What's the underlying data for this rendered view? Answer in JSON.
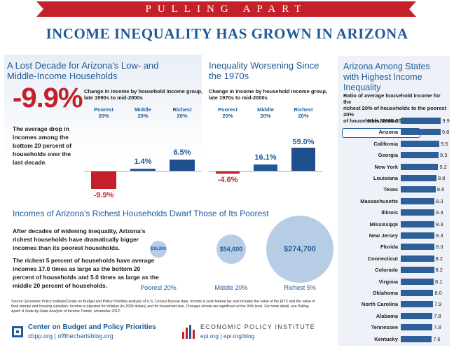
{
  "banner": "PULLING APART",
  "title": "INCOME INEQUALITY HAS GROWN IN ARIZONA",
  "decade": {
    "title_line1": "A Lost Decade for Arizona's Low- and",
    "title_line2": "Middle-Income Households",
    "subtitle_line1": "Change in income by household income group,",
    "subtitle_line2": "late 1990s to mid-2000s",
    "big_number": "-9.9%",
    "para_lines": [
      "The average drop in",
      "incomes among the",
      "bottom 20 percent of",
      "households over the",
      "last decade."
    ]
  },
  "worsening": {
    "title_line1": "Inequality Worsening Since",
    "title_line2": "the 1970s",
    "subtitle_line1": "Change in income by household income group,",
    "subtitle_line2": "late 1970s to mid-2000s"
  },
  "richest": {
    "title": "Incomes of Arizona's Richest Households Dwarf Those of Its Poorest",
    "para1_lines": [
      "After decades of widening inequality, Arizona's",
      "richest households have dramatically bigger",
      "incomes than its poorest households."
    ],
    "para2_lines": [
      "The richest 5 percent of households have average",
      "incomes 17.0 times as large as the bottom 20",
      "percent of households and 5.0 times as large as the",
      "middle 20 percent of households."
    ]
  },
  "states_panel": {
    "title_line1": "Arizona Among States",
    "title_line2": "with Highest Income",
    "title_line3": "Inequality",
    "subtitle_lines": [
      "Ratio of average household income for the",
      "richest 20% of households to the poorest 20%",
      "of households, 2008-2010"
    ]
  },
  "source_lines": [
    "Source: Economic Policy Institute/Center on Budget and Policy Priorities analysis of U.S. Census Bureau data.  Income is post-federal tax and includes the value of the EITC and the value of",
    "food stamps and housing subsidies. Income is adjusted for inflation (to 2009 dollars) and for household size. Changes shown are significant at the 90% level.  For more detail, see Pulling",
    "Apart: A State-by-State Analysis of Income Trends, November 2012."
  ],
  "footer": {
    "cbpp_name": "Center on Budget and Policy Priorities",
    "cbpp_url": "cbpp.org | offthechartsblog.org",
    "epi_name": "ECONOMIC POLICY INSTITUTE",
    "epi_url": "epi.org | epi.org/blog"
  },
  "colors": {
    "red": "#c4202a",
    "blue": "#1f5a96",
    "bar_blue": "#2f5f98",
    "bubble": "#b7cde6"
  },
  "chart_data": [
    {
      "type": "bar",
      "id": "decade",
      "title": "Change in income by household income group, late 1990s to mid-2000s",
      "categories": [
        "Poorest 20%",
        "Middle 20%",
        "Richest 20%"
      ],
      "category_lines": [
        [
          "Poorest",
          "20%"
        ],
        [
          "Middle",
          "20%"
        ],
        [
          "Richest",
          "20%"
        ]
      ],
      "values": [
        -9.9,
        1.4,
        6.5
      ],
      "labels": [
        "-9.9%",
        "1.4%",
        "6.5%"
      ],
      "ylim": [
        -10,
        60
      ]
    },
    {
      "type": "bar",
      "id": "worsening",
      "title": "Change in income by household income group, late 1970s to mid-2000s",
      "categories": [
        "Poorest 20%",
        "Middle 20%",
        "Richest 20%"
      ],
      "category_lines": [
        [
          "Poorest",
          "20%"
        ],
        [
          "Middle",
          "20%"
        ],
        [
          "Richest",
          "20%"
        ]
      ],
      "values": [
        -4.6,
        16.1,
        59.0
      ],
      "labels": [
        "-4.6%",
        "16.1%",
        "59.0%"
      ],
      "ylim": [
        -10,
        60
      ]
    },
    {
      "type": "scatter",
      "id": "bubbles",
      "title": "Incomes of Arizona's Richest Households Dwarf Those of Its Poorest",
      "categories": [
        "Poorest 20%",
        "Middle 20%",
        "Richest 5%"
      ],
      "values": [
        16200,
        54600,
        274700
      ],
      "labels": [
        "$16,200",
        "$54,600",
        "$274,700"
      ]
    },
    {
      "type": "bar",
      "id": "states",
      "title": "Ratio of average household income for the richest 20% of households to the poorest 20% of households, 2008-2010",
      "categories": [
        "New Mexico",
        "Arizona",
        "California",
        "Georgia",
        "New York",
        "Louisiana",
        "Texas",
        "Massachusetts",
        "Illinois",
        "Mississippi",
        "New Jersey",
        "Florida",
        "Connecticut",
        "Colorado",
        "Virginia",
        "Oklahoma",
        "North Carolina",
        "Alabama",
        "Tennessee",
        "Kentucky"
      ],
      "values": [
        9.9,
        9.8,
        9.5,
        9.3,
        9.2,
        8.8,
        8.6,
        8.3,
        8.3,
        8.3,
        8.3,
        8.3,
        8.2,
        8.2,
        8.1,
        8.0,
        7.9,
        7.8,
        7.8,
        7.6
      ],
      "highlight": "Arizona",
      "xlim": [
        0,
        10
      ]
    }
  ]
}
